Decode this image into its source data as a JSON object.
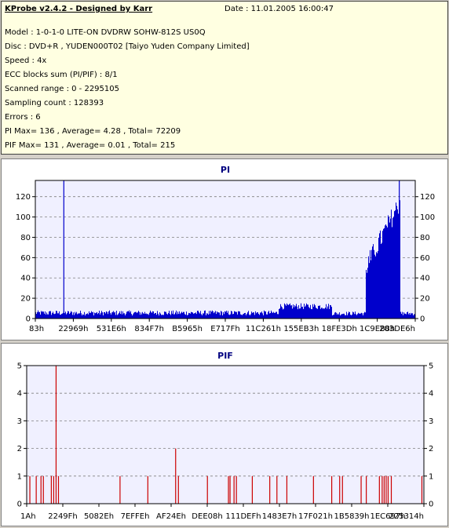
{
  "header": {
    "title": "KProbe v2.4.2 - Designed by Karr",
    "date": "Date : 11.01.2005 16:00:47"
  },
  "info": [
    "Model : 1-0-1-0 LITE-ON DVDRW SOHW-812S  US0Q",
    "Disc : DVD+R , YUDEN000T02 [Taiyo Yuden Company Limited]",
    "Speed : 4x",
    "ECC blocks sum (PI/PIF) : 8/1",
    "Scanned range : 0 - 2295105",
    "Sampling count : 128393",
    "Errors : 6",
    "PI Max= 136 , Average= 4.28 , Total= 72209",
    "PIF Max= 131 , Average= 0.01 , Total= 215"
  ],
  "colors": {
    "plot_bg": "#f0f0ff",
    "series": "#0000cc",
    "pif_series": "#cc0000",
    "grid": "#808080",
    "title": "#000080"
  },
  "chart_data": [
    {
      "type": "bar",
      "title": "PI",
      "ylim": [
        0,
        136
      ],
      "yticks": [
        0,
        20,
        40,
        60,
        80,
        100,
        120
      ],
      "xticklabels": [
        "83h",
        "22969h",
        "531E6h",
        "834F7h",
        "B5965h",
        "E717Fh",
        "11C261h",
        "155EB3h",
        "18FE3Dh",
        "1C9E88h",
        "203DE6h"
      ],
      "grid": true,
      "spikes": [
        {
          "pos": 0.075,
          "value": 136
        },
        {
          "pos": 0.958,
          "value": 136
        }
      ],
      "segments": [
        {
          "from": 0.0,
          "to": 0.64,
          "base": 3,
          "noise": 5
        },
        {
          "from": 0.64,
          "to": 0.78,
          "base": 9,
          "noise": 6
        },
        {
          "from": 0.78,
          "to": 0.87,
          "base": 3,
          "noise": 4
        },
        {
          "from": 0.87,
          "to": 0.96,
          "base": 62,
          "noise": 58
        },
        {
          "from": 0.96,
          "to": 1.0,
          "base": 3,
          "noise": 4
        }
      ]
    },
    {
      "type": "bar",
      "title": "PIF",
      "ylim": [
        0,
        5
      ],
      "yticks": [
        0,
        1,
        2,
        3,
        4,
        5
      ],
      "xticklabels": [
        "1Ah",
        "2249Fh",
        "5082Eh",
        "7EFFEh",
        "AF24Eh",
        "DEE08h",
        "111DEFh",
        "1483E7h",
        "17F021h",
        "1B5839h",
        "1EC697h",
        "225314h"
      ],
      "grid": true,
      "bars": [
        {
          "pos": 0.008,
          "value": 1
        },
        {
          "pos": 0.024,
          "value": 1
        },
        {
          "pos": 0.036,
          "value": 1
        },
        {
          "pos": 0.042,
          "value": 1
        },
        {
          "pos": 0.062,
          "value": 1
        },
        {
          "pos": 0.068,
          "value": 1
        },
        {
          "pos": 0.074,
          "value": 5
        },
        {
          "pos": 0.08,
          "value": 1
        },
        {
          "pos": 0.235,
          "value": 1
        },
        {
          "pos": 0.305,
          "value": 1
        },
        {
          "pos": 0.375,
          "value": 2
        },
        {
          "pos": 0.382,
          "value": 1
        },
        {
          "pos": 0.455,
          "value": 1
        },
        {
          "pos": 0.508,
          "value": 1
        },
        {
          "pos": 0.512,
          "value": 1
        },
        {
          "pos": 0.522,
          "value": 1
        },
        {
          "pos": 0.528,
          "value": 1
        },
        {
          "pos": 0.568,
          "value": 1
        },
        {
          "pos": 0.612,
          "value": 1
        },
        {
          "pos": 0.63,
          "value": 1
        },
        {
          "pos": 0.655,
          "value": 1
        },
        {
          "pos": 0.722,
          "value": 1
        },
        {
          "pos": 0.768,
          "value": 1
        },
        {
          "pos": 0.788,
          "value": 1
        },
        {
          "pos": 0.795,
          "value": 1
        },
        {
          "pos": 0.842,
          "value": 1
        },
        {
          "pos": 0.855,
          "value": 1
        },
        {
          "pos": 0.888,
          "value": 1
        },
        {
          "pos": 0.895,
          "value": 1
        },
        {
          "pos": 0.9,
          "value": 1
        },
        {
          "pos": 0.905,
          "value": 1
        },
        {
          "pos": 0.91,
          "value": 1
        },
        {
          "pos": 0.918,
          "value": 1
        },
        {
          "pos": 0.995,
          "value": 1
        }
      ]
    }
  ]
}
